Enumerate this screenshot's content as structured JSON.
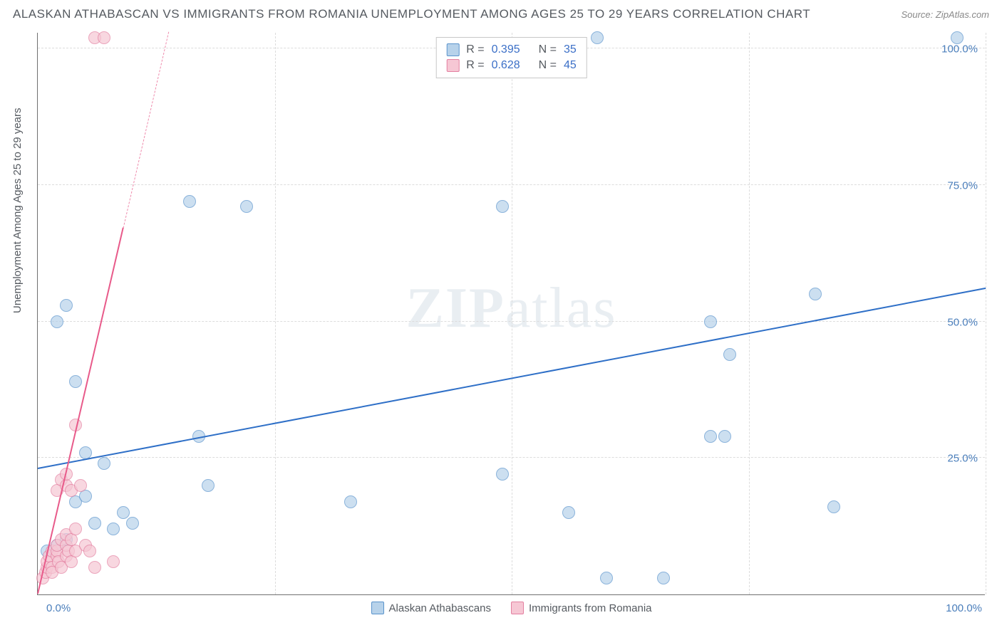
{
  "header": {
    "title": "ALASKAN ATHABASCAN VS IMMIGRANTS FROM ROMANIA UNEMPLOYMENT AMONG AGES 25 TO 29 YEARS CORRELATION CHART",
    "source": "Source: ZipAtlas.com"
  },
  "chart": {
    "type": "scatter",
    "y_axis_title": "Unemployment Among Ages 25 to 29 years",
    "xlim": [
      0,
      100
    ],
    "ylim": [
      0,
      103
    ],
    "x_ticks": [
      0,
      50,
      100
    ],
    "x_tick_labels": [
      "0.0%",
      "",
      "100.0%"
    ],
    "y_ticks": [
      25,
      50,
      75,
      100
    ],
    "y_tick_labels": [
      "25.0%",
      "50.0%",
      "75.0%",
      "100.0%"
    ],
    "x_gridlines": [
      25,
      50,
      75,
      100
    ],
    "y_gridlines": [
      25,
      50,
      75,
      100
    ],
    "grid_color": "#dcdcdc",
    "axis_color": "#707070",
    "background_color": "#ffffff",
    "label_color": "#4a7ebb",
    "watermark_zip": "ZIP",
    "watermark_atlas": "atlas",
    "series": [
      {
        "name": "Alaskan Athabascans",
        "color_fill": "#b7d2ea",
        "color_stroke": "#5a93cc",
        "trend_color": "#2e6fc7",
        "r_value": "0.395",
        "n_value": "35",
        "trend": {
          "x1": 0,
          "y1": 23,
          "x2": 100,
          "y2": 56
        },
        "points": [
          {
            "x": 2,
            "y": 50
          },
          {
            "x": 3,
            "y": 53
          },
          {
            "x": 4,
            "y": 39
          },
          {
            "x": 1,
            "y": 8
          },
          {
            "x": 2,
            "y": 9
          },
          {
            "x": 3,
            "y": 10
          },
          {
            "x": 4,
            "y": 17
          },
          {
            "x": 5,
            "y": 18
          },
          {
            "x": 5,
            "y": 26
          },
          {
            "x": 6,
            "y": 13
          },
          {
            "x": 7,
            "y": 24
          },
          {
            "x": 8,
            "y": 12
          },
          {
            "x": 9,
            "y": 15
          },
          {
            "x": 10,
            "y": 13
          },
          {
            "x": 16,
            "y": 72
          },
          {
            "x": 17,
            "y": 29
          },
          {
            "x": 18,
            "y": 20
          },
          {
            "x": 22,
            "y": 71
          },
          {
            "x": 33,
            "y": 17
          },
          {
            "x": 49,
            "y": 71
          },
          {
            "x": 49,
            "y": 22
          },
          {
            "x": 56,
            "y": 15
          },
          {
            "x": 59,
            "y": 102
          },
          {
            "x": 60,
            "y": 3
          },
          {
            "x": 66,
            "y": 3
          },
          {
            "x": 71,
            "y": 50
          },
          {
            "x": 71,
            "y": 29
          },
          {
            "x": 72.5,
            "y": 29
          },
          {
            "x": 73,
            "y": 44
          },
          {
            "x": 82,
            "y": 55
          },
          {
            "x": 84,
            "y": 16
          },
          {
            "x": 97,
            "y": 102
          }
        ]
      },
      {
        "name": "Immigrants from Romania",
        "color_fill": "#f6c7d4",
        "color_stroke": "#e37fa0",
        "trend_color": "#e85a8a",
        "r_value": "0.628",
        "n_value": "45",
        "trend": {
          "x1": 0,
          "y1": 0,
          "x2": 9,
          "y2": 67
        },
        "trend_ext": {
          "x1": 9,
          "y1": 67,
          "x2": 13.8,
          "y2": 103
        },
        "points": [
          {
            "x": 0.5,
            "y": 3
          },
          {
            "x": 0.8,
            "y": 4
          },
          {
            "x": 1,
            "y": 5
          },
          {
            "x": 1,
            "y": 6
          },
          {
            "x": 1.2,
            "y": 7
          },
          {
            "x": 1.5,
            "y": 5
          },
          {
            "x": 1.5,
            "y": 8
          },
          {
            "x": 1.5,
            "y": 4
          },
          {
            "x": 2,
            "y": 7
          },
          {
            "x": 2,
            "y": 8
          },
          {
            "x": 2,
            "y": 9
          },
          {
            "x": 2.2,
            "y": 6
          },
          {
            "x": 2.5,
            "y": 5
          },
          {
            "x": 2.5,
            "y": 10
          },
          {
            "x": 3,
            "y": 7
          },
          {
            "x": 3,
            "y": 9
          },
          {
            "x": 3,
            "y": 11
          },
          {
            "x": 3.2,
            "y": 8
          },
          {
            "x": 3.5,
            "y": 6
          },
          {
            "x": 3.5,
            "y": 10
          },
          {
            "x": 4,
            "y": 8
          },
          {
            "x": 4,
            "y": 12
          },
          {
            "x": 2,
            "y": 19
          },
          {
            "x": 2.5,
            "y": 21
          },
          {
            "x": 3,
            "y": 20
          },
          {
            "x": 3,
            "y": 22
          },
          {
            "x": 3.5,
            "y": 19
          },
          {
            "x": 4,
            "y": 31
          },
          {
            "x": 4.5,
            "y": 20
          },
          {
            "x": 5,
            "y": 9
          },
          {
            "x": 5.5,
            "y": 8
          },
          {
            "x": 6,
            "y": 5
          },
          {
            "x": 8,
            "y": 6
          },
          {
            "x": 6,
            "y": 102
          },
          {
            "x": 7,
            "y": 102
          }
        ]
      }
    ],
    "bottom_legend": [
      {
        "label": "Alaskan Athabascans",
        "fill": "#b7d2ea",
        "stroke": "#5a93cc"
      },
      {
        "label": "Immigrants from Romania",
        "fill": "#f6c7d4",
        "stroke": "#e37fa0"
      }
    ]
  }
}
